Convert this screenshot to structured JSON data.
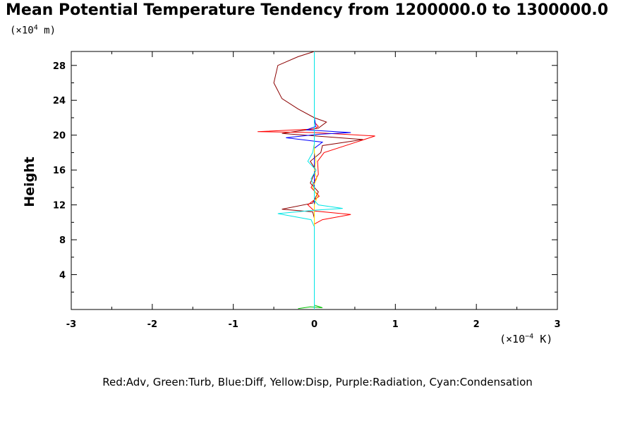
{
  "chart_data": {
    "type": "line",
    "title": "Mean Potential Temperature Tendency from 1200000.0 to 1300000.0",
    "ylabel": "Height",
    "y_unit": {
      "prefix": "(×10",
      "exp": "4",
      "suffix": " m)"
    },
    "x_unit": {
      "prefix": "(×10",
      "exp": "−4",
      "suffix": " K)"
    },
    "xlim": [
      -3,
      3
    ],
    "ylim": [
      0,
      29.6
    ],
    "x_ticks": [
      "-3",
      "-2",
      "-1",
      "0",
      "1",
      "2",
      "3"
    ],
    "y_ticks": [
      "4",
      "8",
      "12",
      "16",
      "20",
      "24",
      "28"
    ],
    "legend_text": "Red:Adv, Green:Turb, Blue:Diff, Yellow:Disp, Purple:Radiation, Cyan:Condensation",
    "series": [
      {
        "color": "#8b0000",
        "points": [
          [
            0,
            0
          ],
          [
            0,
            9
          ],
          [
            0,
            10.5
          ],
          [
            -0.02,
            11.2
          ],
          [
            -0.4,
            11.5
          ],
          [
            -0.02,
            12.2
          ],
          [
            0.05,
            13.5
          ],
          [
            -0.05,
            14.5
          ],
          [
            0.02,
            16
          ],
          [
            -0.05,
            17
          ],
          [
            0.08,
            18
          ],
          [
            0.1,
            18.8
          ],
          [
            0.6,
            19.5
          ],
          [
            -0.4,
            20.2
          ],
          [
            0.05,
            20.8
          ],
          [
            0.15,
            21.5
          ],
          [
            0,
            22
          ],
          [
            -0.2,
            23
          ],
          [
            -0.4,
            24.2
          ],
          [
            -0.5,
            26
          ],
          [
            -0.45,
            28
          ],
          [
            -0.2,
            29
          ],
          [
            0,
            29.6
          ]
        ]
      },
      {
        "color": "#ff0000",
        "points": [
          [
            0,
            0
          ],
          [
            0,
            9.8
          ],
          [
            0.1,
            10.3
          ],
          [
            0.45,
            10.9
          ],
          [
            0,
            11.3
          ],
          [
            -0.08,
            12
          ],
          [
            0.06,
            13
          ],
          [
            -0.04,
            14
          ],
          [
            0.05,
            15.5
          ],
          [
            0.04,
            17
          ],
          [
            0.12,
            18
          ],
          [
            0.75,
            19.9
          ],
          [
            -0.02,
            20.3
          ],
          [
            -0.7,
            20.4
          ],
          [
            0,
            20.7
          ],
          [
            0.05,
            21
          ],
          [
            0,
            21.5
          ],
          [
            0,
            29.6
          ]
        ]
      },
      {
        "color": "#00c000",
        "points": [
          [
            -0.2,
            0.1
          ],
          [
            -0.05,
            0.3
          ],
          [
            0.1,
            0.2
          ],
          [
            0,
            0.5
          ],
          [
            0,
            29.6
          ]
        ]
      },
      {
        "color": "#0000ff",
        "points": [
          [
            0,
            0
          ],
          [
            0,
            18.5
          ],
          [
            0.1,
            19.2
          ],
          [
            -0.35,
            19.7
          ],
          [
            0.05,
            20.1
          ],
          [
            0.45,
            20.3
          ],
          [
            -0.1,
            20.6
          ],
          [
            0.02,
            21
          ],
          [
            0,
            22
          ],
          [
            0,
            29.6
          ]
        ]
      },
      {
        "color": "#ffd800",
        "points": [
          [
            0,
            0
          ],
          [
            0,
            12
          ],
          [
            0.04,
            13
          ],
          [
            -0.02,
            14
          ],
          [
            0.03,
            15
          ],
          [
            0,
            16
          ],
          [
            0.02,
            17
          ],
          [
            0,
            18
          ],
          [
            0,
            29.6
          ]
        ]
      },
      {
        "color": "#00e5e5",
        "points": [
          [
            0,
            0
          ],
          [
            0,
            9.5
          ],
          [
            -0.04,
            10.3
          ],
          [
            -0.45,
            11
          ],
          [
            0.02,
            11.4
          ],
          [
            0.35,
            11.6
          ],
          [
            0.05,
            12
          ],
          [
            0,
            12.5
          ],
          [
            0,
            14
          ],
          [
            -0.04,
            15
          ],
          [
            0.02,
            16
          ],
          [
            -0.08,
            17
          ],
          [
            -0.02,
            18
          ],
          [
            0,
            19
          ],
          [
            0,
            29.6
          ]
        ]
      }
    ]
  }
}
